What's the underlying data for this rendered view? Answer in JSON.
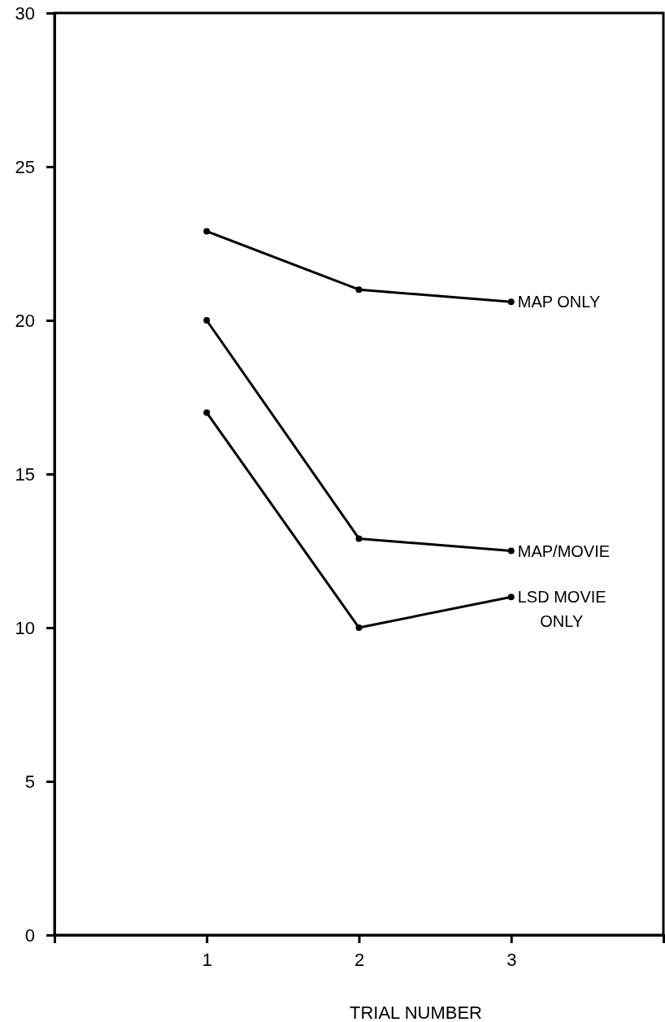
{
  "chart_data": {
    "type": "line",
    "xlabel": "TRIAL NUMBER",
    "x": [
      1,
      2,
      3
    ],
    "xlim": [
      0,
      4
    ],
    "xticks": [
      1,
      2,
      3
    ],
    "ylim": [
      0,
      30
    ],
    "yticks": [
      0,
      5,
      10,
      15,
      20,
      25,
      30
    ],
    "grid": false,
    "marker": "circle",
    "line_style": "solid",
    "series": [
      {
        "name": "MAP ONLY",
        "color": "#000000",
        "values": [
          22.9,
          21.0,
          20.6
        ]
      },
      {
        "name": "MAP/MOVIE",
        "color": "#000000",
        "values": [
          20.0,
          12.9,
          12.5
        ]
      },
      {
        "name": "LSD MOVIE ONLY",
        "color": "#000000",
        "values": [
          17.0,
          10.0,
          11.0
        ]
      }
    ]
  }
}
